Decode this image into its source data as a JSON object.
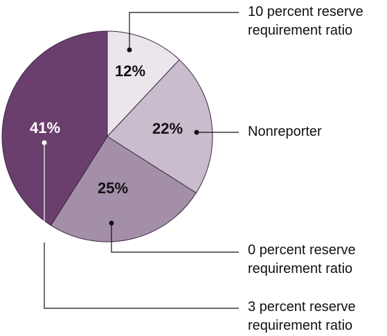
{
  "chart_data": {
    "type": "pie",
    "categories": [
      "10 percent reserve requirement ratio",
      "Nonreporter",
      "0 percent reserve requirement ratio",
      "3 percent reserve requirement ratio"
    ],
    "values": [
      12,
      22,
      25,
      41
    ],
    "value_labels": [
      "12%",
      "22%",
      "25%",
      "41%"
    ],
    "colors": [
      "#ebe5ec",
      "#c9bccc",
      "#a48fa8",
      "#6a3f6d"
    ]
  }
}
